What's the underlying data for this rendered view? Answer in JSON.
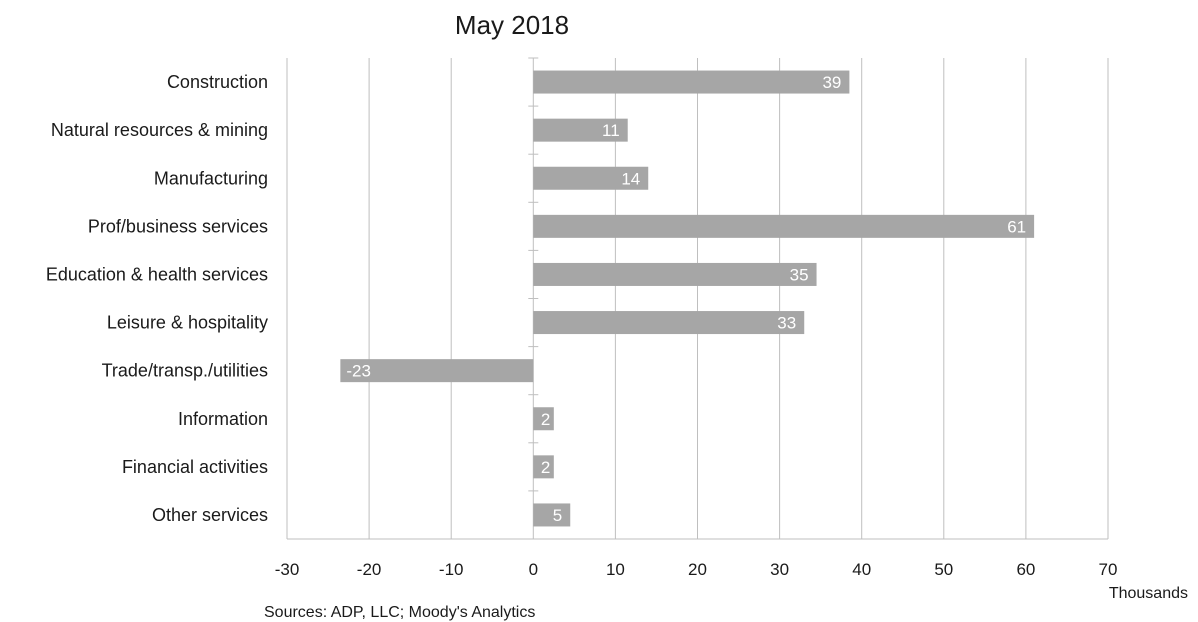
{
  "chart_data": {
    "type": "bar",
    "orientation": "horizontal",
    "title": "May 2018",
    "categories": [
      "Construction",
      "Natural resources & mining",
      "Manufacturing",
      "Prof/business services",
      "Education & health services",
      "Leisure & hospitality",
      "Trade/transp./utilities",
      "Information",
      "Financial activities",
      "Other services"
    ],
    "values": [
      38.5,
      11.5,
      14,
      61,
      34.5,
      33,
      -23.5,
      2.5,
      2.5,
      4.5
    ],
    "labels": [
      "39",
      "11",
      "14",
      "61",
      "35",
      "33",
      "-23",
      "2",
      "2",
      "5"
    ],
    "xlim": [
      -30,
      70
    ],
    "xticks": [
      -30,
      -20,
      -10,
      0,
      10,
      20,
      30,
      40,
      50,
      60,
      70
    ],
    "xlabel": "Thousands",
    "ylabel": "",
    "grid": "vertical",
    "legend": "none",
    "colors": {
      "bar": "#a6a6a6",
      "grid": "#bfbfbf",
      "text": "#1a1a1a",
      "label": "#ffffff"
    }
  },
  "source": "Sources: ADP, LLC; Moody's Analytics"
}
